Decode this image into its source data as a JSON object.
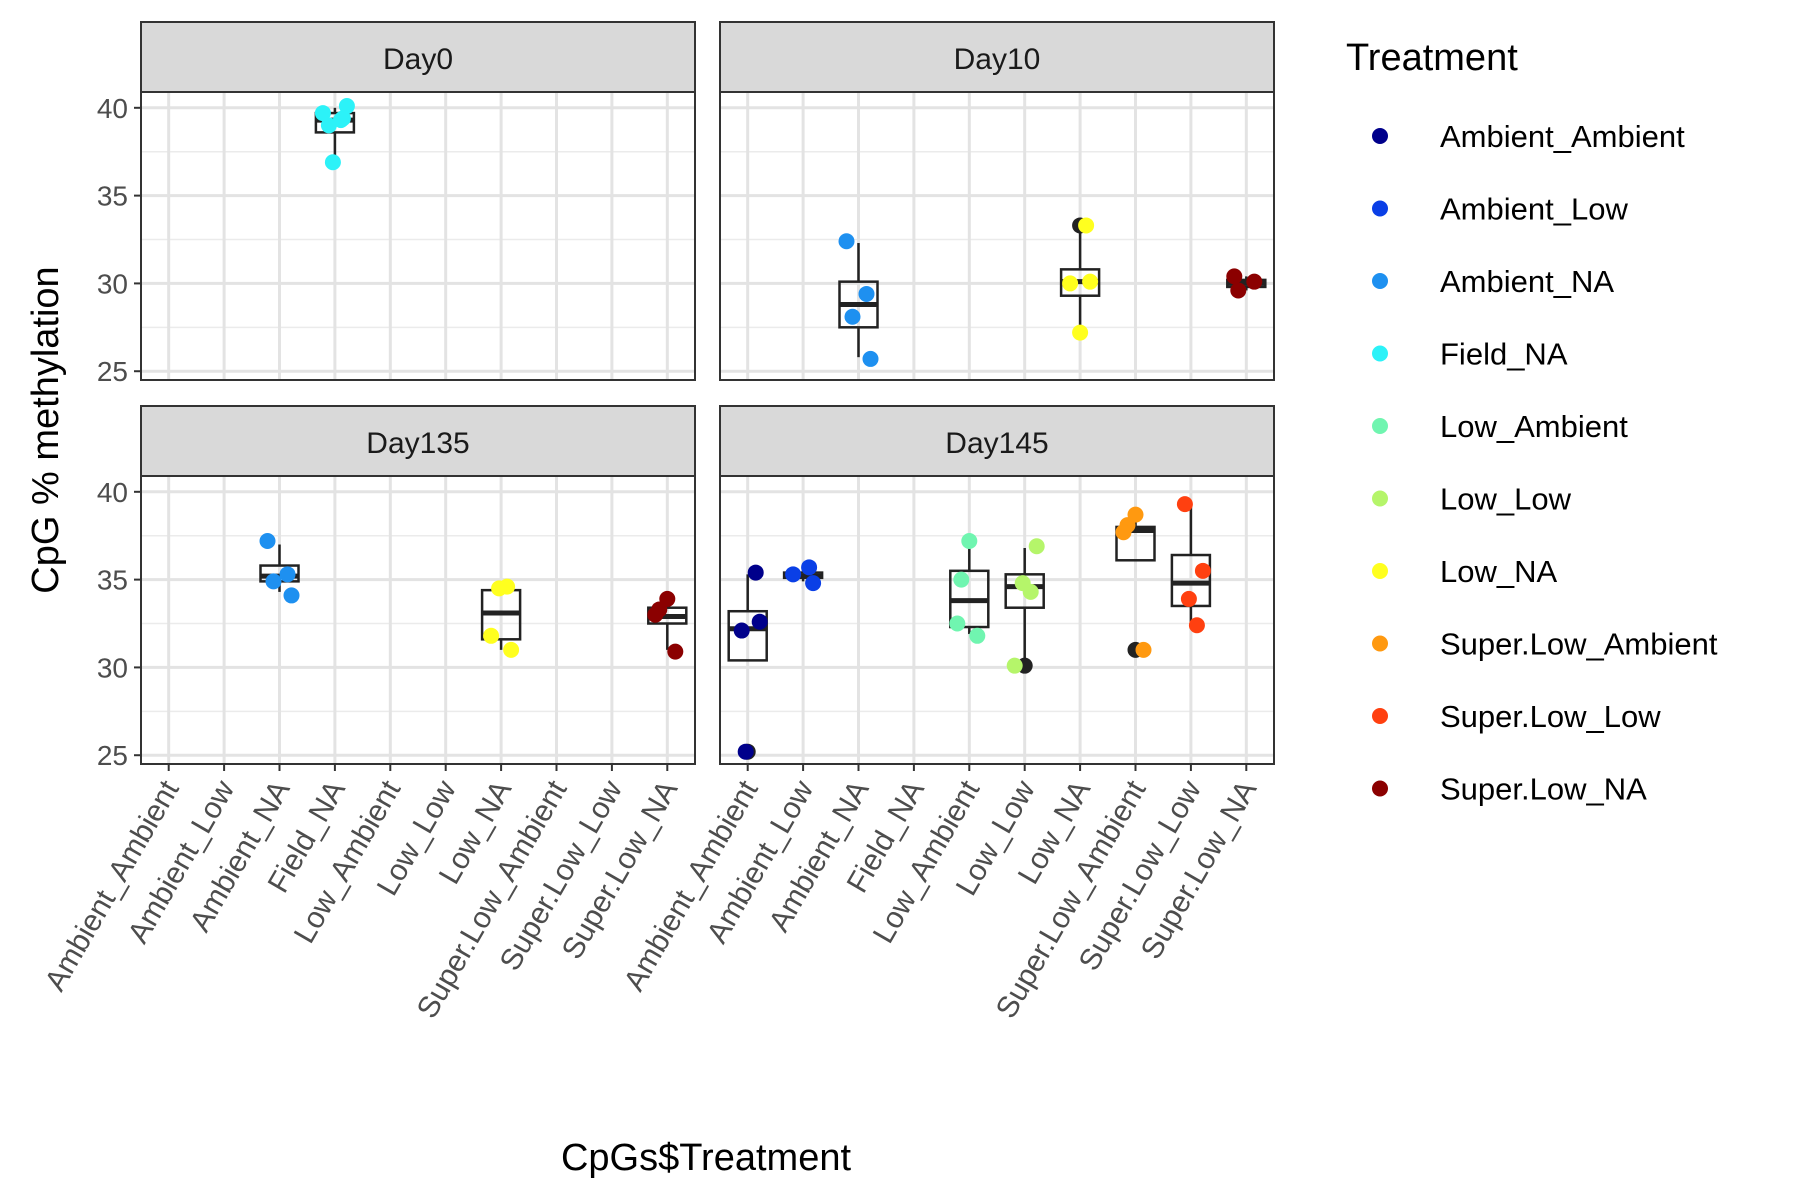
{
  "chart_data": {
    "type": "scatter",
    "subtype": "faceted boxplot with jittered points",
    "xlabel": "CpGs$Treatment",
    "ylabel": "CpG % methylation",
    "ylim": [
      24.5,
      40.9
    ],
    "yticks": [
      25,
      30,
      35,
      40
    ],
    "grid": true,
    "legend_title": "Treatment",
    "legend_position": "right",
    "categories": [
      "Ambient_Ambient",
      "Ambient_Low",
      "Ambient_NA",
      "Field_NA",
      "Low_Ambient",
      "Low_Low",
      "Low_NA",
      "Super.Low_Ambient",
      "Super.Low_Low",
      "Super.Low_NA"
    ],
    "colors": {
      "Ambient_Ambient": "#00008B",
      "Ambient_Low": "#0A3FE6",
      "Ambient_NA": "#1E90F0",
      "Field_NA": "#2CF2F8",
      "Low_Ambient": "#70F5B0",
      "Low_Low": "#B5F56A",
      "Low_NA": "#FFFF1F",
      "Super.Low_Ambient": "#FF9910",
      "Super.Low_Low": "#FF4010",
      "Super.Low_NA": "#8B0000"
    },
    "facets": [
      {
        "name": "Day0",
        "boxes": [
          {
            "treatment": "Field_NA",
            "q1": 38.6,
            "median": 39.3,
            "q3": 39.7,
            "whisker_low": 37.0,
            "whisker_high": 40.0
          }
        ],
        "points": [
          {
            "treatment": "Field_NA",
            "y": 39.7
          },
          {
            "treatment": "Field_NA",
            "y": 39.4
          },
          {
            "treatment": "Field_NA",
            "y": 39.0
          },
          {
            "treatment": "Field_NA",
            "y": 40.1
          },
          {
            "treatment": "Field_NA",
            "y": 36.9
          },
          {
            "treatment": "Field_NA",
            "y": 39.3
          }
        ]
      },
      {
        "name": "Day10",
        "boxes": [
          {
            "treatment": "Ambient_NA",
            "q1": 27.5,
            "median": 28.8,
            "q3": 30.1,
            "whisker_low": 25.8,
            "whisker_high": 32.3
          },
          {
            "treatment": "Low_NA",
            "q1": 29.3,
            "median": 30.1,
            "q3": 30.8,
            "whisker_low": 27.3,
            "whisker_high": 33.2
          },
          {
            "treatment": "Super.Low_NA",
            "q1": 29.8,
            "median": 30.0,
            "q3": 30.2,
            "whisker_low": 29.6,
            "whisker_high": 30.4
          }
        ],
        "points": [
          {
            "treatment": "Ambient_NA",
            "y": 32.4
          },
          {
            "treatment": "Ambient_NA",
            "y": 29.4
          },
          {
            "treatment": "Ambient_NA",
            "y": 28.1
          },
          {
            "treatment": "Ambient_NA",
            "y": 25.7
          },
          {
            "treatment": "Low_NA",
            "y": 33.3,
            "outlier": true
          },
          {
            "treatment": "Low_NA",
            "y": 33.3
          },
          {
            "treatment": "Low_NA",
            "y": 30.0
          },
          {
            "treatment": "Low_NA",
            "y": 30.1
          },
          {
            "treatment": "Low_NA",
            "y": 27.2
          },
          {
            "treatment": "Super.Low_NA",
            "y": 29.6
          },
          {
            "treatment": "Super.Low_NA",
            "y": 30.4
          },
          {
            "treatment": "Super.Low_NA",
            "y": 30.1
          }
        ]
      },
      {
        "name": "Day135",
        "boxes": [
          {
            "treatment": "Ambient_NA",
            "q1": 34.9,
            "median": 35.2,
            "q3": 35.8,
            "whisker_low": 34.3,
            "whisker_high": 37.0
          },
          {
            "treatment": "Low_NA",
            "q1": 31.6,
            "median": 33.1,
            "q3": 34.4,
            "whisker_low": 31.0,
            "whisker_high": 34.6
          },
          {
            "treatment": "Super.Low_NA",
            "q1": 32.5,
            "median": 32.9,
            "q3": 33.4,
            "whisker_low": 31.0,
            "whisker_high": 33.7
          }
        ],
        "points": [
          {
            "treatment": "Ambient_NA",
            "y": 37.2
          },
          {
            "treatment": "Ambient_NA",
            "y": 35.3
          },
          {
            "treatment": "Ambient_NA",
            "y": 34.9
          },
          {
            "treatment": "Ambient_NA",
            "y": 34.1
          },
          {
            "treatment": "Low_NA",
            "y": 34.5
          },
          {
            "treatment": "Low_NA",
            "y": 34.6
          },
          {
            "treatment": "Low_NA",
            "y": 31.8
          },
          {
            "treatment": "Low_NA",
            "y": 31.0
          },
          {
            "treatment": "Super.Low_NA",
            "y": 33.9
          },
          {
            "treatment": "Super.Low_NA",
            "y": 33.3
          },
          {
            "treatment": "Super.Low_NA",
            "y": 33.0
          },
          {
            "treatment": "Super.Low_NA",
            "y": 30.9
          }
        ]
      },
      {
        "name": "Day145",
        "boxes": [
          {
            "treatment": "Ambient_Ambient",
            "q1": 30.4,
            "median": 32.2,
            "q3": 33.2,
            "whisker_low": 30.4,
            "whisker_high": 35.3
          },
          {
            "treatment": "Ambient_Low",
            "q1": 35.1,
            "median": 35.2,
            "q3": 35.4,
            "whisker_low": 34.9,
            "whisker_high": 35.6
          },
          {
            "treatment": "Low_Ambient",
            "q1": 32.3,
            "median": 33.8,
            "q3": 35.5,
            "whisker_low": 31.9,
            "whisker_high": 37.1
          },
          {
            "treatment": "Low_Low",
            "q1": 33.4,
            "median": 34.6,
            "q3": 35.3,
            "whisker_low": 30.2,
            "whisker_high": 36.8
          },
          {
            "treatment": "Super.Low_Ambient",
            "q1": 36.1,
            "median": 37.8,
            "q3": 38.0,
            "whisker_low": 36.1,
            "whisker_high": 38.5
          },
          {
            "treatment": "Super.Low_Low",
            "q1": 33.5,
            "median": 34.8,
            "q3": 36.4,
            "whisker_low": 32.4,
            "whisker_high": 39.2
          }
        ],
        "points": [
          {
            "treatment": "Ambient_Ambient",
            "y": 25.2,
            "outlier": true
          },
          {
            "treatment": "Ambient_Ambient",
            "y": 35.4
          },
          {
            "treatment": "Ambient_Ambient",
            "y": 32.1
          },
          {
            "treatment": "Ambient_Ambient",
            "y": 32.6
          },
          {
            "treatment": "Ambient_Ambient",
            "y": 25.2
          },
          {
            "treatment": "Ambient_Low",
            "y": 35.7
          },
          {
            "treatment": "Ambient_Low",
            "y": 35.3
          },
          {
            "treatment": "Ambient_Low",
            "y": 34.8
          },
          {
            "treatment": "Low_Ambient",
            "y": 37.2
          },
          {
            "treatment": "Low_Ambient",
            "y": 35.0
          },
          {
            "treatment": "Low_Ambient",
            "y": 32.5
          },
          {
            "treatment": "Low_Ambient",
            "y": 31.8
          },
          {
            "treatment": "Low_Low",
            "y": 30.1,
            "outlier": true
          },
          {
            "treatment": "Low_Low",
            "y": 36.9
          },
          {
            "treatment": "Low_Low",
            "y": 34.8
          },
          {
            "treatment": "Low_Low",
            "y": 34.3
          },
          {
            "treatment": "Low_Low",
            "y": 30.1
          },
          {
            "treatment": "Super.Low_Ambient",
            "y": 31.0,
            "outlier": true
          },
          {
            "treatment": "Super.Low_Ambient",
            "y": 38.7
          },
          {
            "treatment": "Super.Low_Ambient",
            "y": 38.1
          },
          {
            "treatment": "Super.Low_Ambient",
            "y": 37.7
          },
          {
            "treatment": "Super.Low_Ambient",
            "y": 31.0
          },
          {
            "treatment": "Super.Low_Low",
            "y": 39.3
          },
          {
            "treatment": "Super.Low_Low",
            "y": 35.5
          },
          {
            "treatment": "Super.Low_Low",
            "y": 33.9
          },
          {
            "treatment": "Super.Low_Low",
            "y": 32.4
          }
        ]
      }
    ]
  }
}
